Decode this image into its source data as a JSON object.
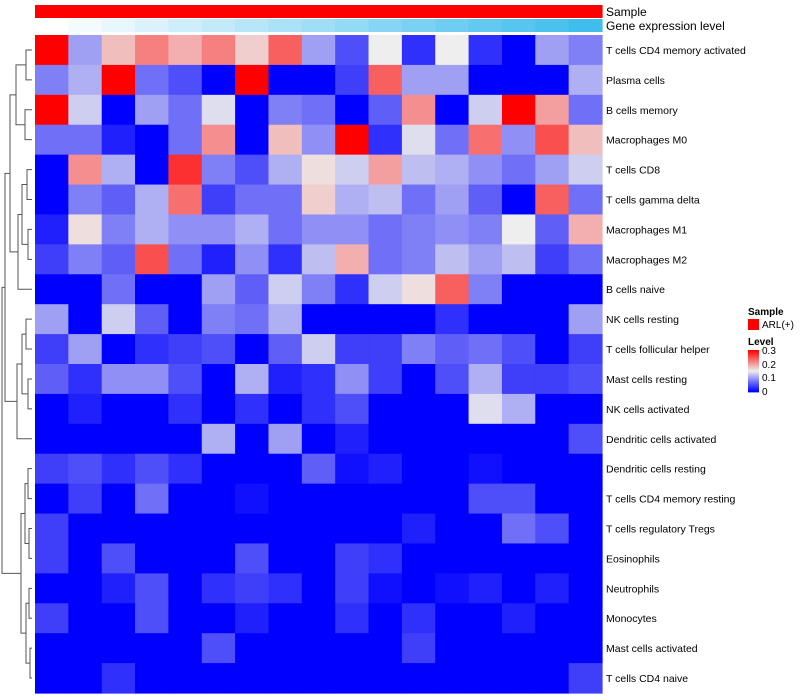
{
  "chart_data": {
    "type": "heatmap",
    "columns": 17,
    "rows": [
      "T cells CD4 memory activated",
      "Plasma cells",
      "B cells memory",
      "Macrophages M0",
      "T cells CD8",
      "T cells gamma delta",
      "Macrophages M1",
      "Macrophages M2",
      "B cells naive",
      "NK cells resting",
      "T cells follicular helper",
      "Mast cells resting",
      "NK cells activated",
      "Dendritic cells activated",
      "Dendritic cells resting",
      "T cells CD4 memory resting",
      "T cells regulatory  Tregs",
      "Eosinophils",
      "Neutrophils",
      "Monocytes",
      "Mast cells activated",
      "T cells CD4 naive"
    ],
    "values": [
      [
        0.3,
        0.1,
        0.18,
        0.22,
        0.19,
        0.22,
        0.17,
        0.24,
        0.1,
        0.05,
        0.15,
        0.03,
        0.15,
        0.03,
        0.0,
        0.1,
        0.08
      ],
      [
        0.08,
        0.11,
        0.3,
        0.07,
        0.05,
        0.0,
        0.3,
        0.0,
        0.0,
        0.04,
        0.24,
        0.1,
        0.1,
        0.0,
        0.0,
        0.0,
        0.11
      ],
      [
        0.3,
        0.13,
        0.0,
        0.1,
        0.07,
        0.14,
        0.0,
        0.08,
        0.07,
        0.0,
        0.06,
        0.21,
        0.0,
        0.13,
        0.3,
        0.2,
        0.07
      ],
      [
        0.07,
        0.07,
        0.02,
        0.0,
        0.07,
        0.21,
        0.0,
        0.18,
        0.09,
        0.3,
        0.03,
        0.14,
        0.07,
        0.23,
        0.09,
        0.25,
        0.18
      ],
      [
        0.0,
        0.21,
        0.11,
        0.0,
        0.27,
        0.08,
        0.05,
        0.11,
        0.16,
        0.13,
        0.2,
        0.12,
        0.11,
        0.09,
        0.07,
        0.1,
        0.13
      ],
      [
        0.0,
        0.08,
        0.06,
        0.11,
        0.23,
        0.04,
        0.07,
        0.07,
        0.17,
        0.11,
        0.12,
        0.07,
        0.1,
        0.06,
        0.0,
        0.24,
        0.07
      ],
      [
        0.02,
        0.16,
        0.08,
        0.11,
        0.09,
        0.09,
        0.11,
        0.07,
        0.09,
        0.09,
        0.07,
        0.08,
        0.09,
        0.08,
        0.15,
        0.06,
        0.19
      ],
      [
        0.04,
        0.08,
        0.06,
        0.25,
        0.07,
        0.02,
        0.09,
        0.03,
        0.12,
        0.19,
        0.07,
        0.08,
        0.12,
        0.1,
        0.12,
        0.04,
        0.07
      ],
      [
        0.0,
        0.0,
        0.07,
        0.0,
        0.0,
        0.1,
        0.06,
        0.13,
        0.08,
        0.03,
        0.13,
        0.16,
        0.24,
        0.08,
        0.0,
        0.0,
        0.0
      ],
      [
        0.1,
        0.0,
        0.13,
        0.06,
        0.0,
        0.08,
        0.07,
        0.11,
        0.0,
        0.0,
        0.0,
        0.0,
        0.03,
        0.0,
        0.0,
        0.0,
        0.1
      ],
      [
        0.04,
        0.1,
        0.0,
        0.03,
        0.04,
        0.05,
        0.0,
        0.06,
        0.13,
        0.04,
        0.04,
        0.08,
        0.06,
        0.07,
        0.05,
        0.0,
        0.04
      ],
      [
        0.06,
        0.03,
        0.09,
        0.09,
        0.05,
        0.0,
        0.11,
        0.02,
        0.03,
        0.09,
        0.04,
        0.0,
        0.05,
        0.11,
        0.04,
        0.04,
        0.05
      ],
      [
        0.0,
        0.02,
        0.0,
        0.0,
        0.03,
        0.0,
        0.03,
        0.0,
        0.03,
        0.05,
        0.0,
        0.0,
        0.0,
        0.14,
        0.11,
        0.0,
        0.0
      ],
      [
        0.0,
        0.0,
        0.0,
        0.0,
        0.0,
        0.11,
        0.0,
        0.1,
        0.0,
        0.02,
        0.0,
        0.0,
        0.0,
        0.0,
        0.0,
        0.0,
        0.05
      ],
      [
        0.04,
        0.05,
        0.03,
        0.05,
        0.03,
        0.0,
        0.0,
        0.0,
        0.06,
        0.01,
        0.02,
        0.0,
        0.0,
        0.01,
        0.0,
        0.0,
        0.0
      ],
      [
        0.0,
        0.04,
        0.0,
        0.07,
        0.0,
        0.0,
        0.01,
        0.0,
        0.0,
        0.0,
        0.0,
        0.0,
        0.0,
        0.05,
        0.05,
        0.0,
        0.0
      ],
      [
        0.04,
        0.0,
        0.0,
        0.0,
        0.0,
        0.0,
        0.0,
        0.0,
        0.0,
        0.0,
        0.0,
        0.02,
        0.0,
        0.0,
        0.07,
        0.05,
        0.0
      ],
      [
        0.04,
        0.0,
        0.05,
        0.0,
        0.0,
        0.0,
        0.05,
        0.0,
        0.0,
        0.04,
        0.03,
        0.0,
        0.0,
        0.0,
        0.0,
        0.0,
        0.0
      ],
      [
        0.0,
        0.0,
        0.02,
        0.05,
        0.0,
        0.03,
        0.04,
        0.03,
        0.0,
        0.04,
        0.01,
        0.0,
        0.01,
        0.02,
        0.0,
        0.02,
        0.0
      ],
      [
        0.04,
        0.0,
        0.0,
        0.05,
        0.0,
        0.0,
        0.02,
        0.0,
        0.0,
        0.03,
        0.0,
        0.03,
        0.0,
        0.0,
        0.02,
        0.0,
        0.0
      ],
      [
        0.0,
        0.0,
        0.0,
        0.0,
        0.0,
        0.05,
        0.0,
        0.0,
        0.0,
        0.0,
        0.0,
        0.04,
        0.0,
        0.0,
        0.0,
        0.0,
        0.0
      ],
      [
        0.0,
        0.0,
        0.03,
        0.0,
        0.0,
        0.0,
        0.0,
        0.0,
        0.0,
        0.0,
        0.0,
        0.0,
        0.0,
        0.0,
        0.0,
        0.0,
        0.04
      ]
    ],
    "value_range": [
      0,
      0.3
    ],
    "annotations": [
      {
        "label": "Sample",
        "colors": [
          "#ff0000",
          "#ff0000",
          "#ff0000",
          "#ff0000",
          "#ff0000",
          "#ff0000",
          "#ff0000",
          "#ff0000",
          "#ff0000",
          "#ff0000",
          "#ff0000",
          "#ff0000",
          "#ff0000",
          "#ff0000",
          "#ff0000",
          "#ff0000",
          "#ff0000"
        ]
      },
      {
        "label": "Gene expression level",
        "colors": [
          "#ffffff",
          "#f3fbfe",
          "#e7f7fd",
          "#dbf2fc",
          "#cfeefb",
          "#c3eaf9",
          "#b7e6f8",
          "#abe2f7",
          "#9fdef6",
          "#93daf5",
          "#87d5f4",
          "#7bd1f2",
          "#6fcdf1",
          "#63c9f0",
          "#57c5ef",
          "#4bc1ee",
          "#3fbdec"
        ]
      }
    ],
    "legend": {
      "sample_title": "Sample",
      "sample_entries": [
        {
          "label": "ARL(+)",
          "color": "#ff0000"
        }
      ],
      "level_title": "Level",
      "level_ticks": [
        "0.3",
        "0.2",
        "0.1",
        "0"
      ],
      "color_low": "#0000ff",
      "color_mid": "#eeeeee",
      "color_high": "#ff0000",
      "placement": "right"
    },
    "dendrogram": "rows"
  }
}
